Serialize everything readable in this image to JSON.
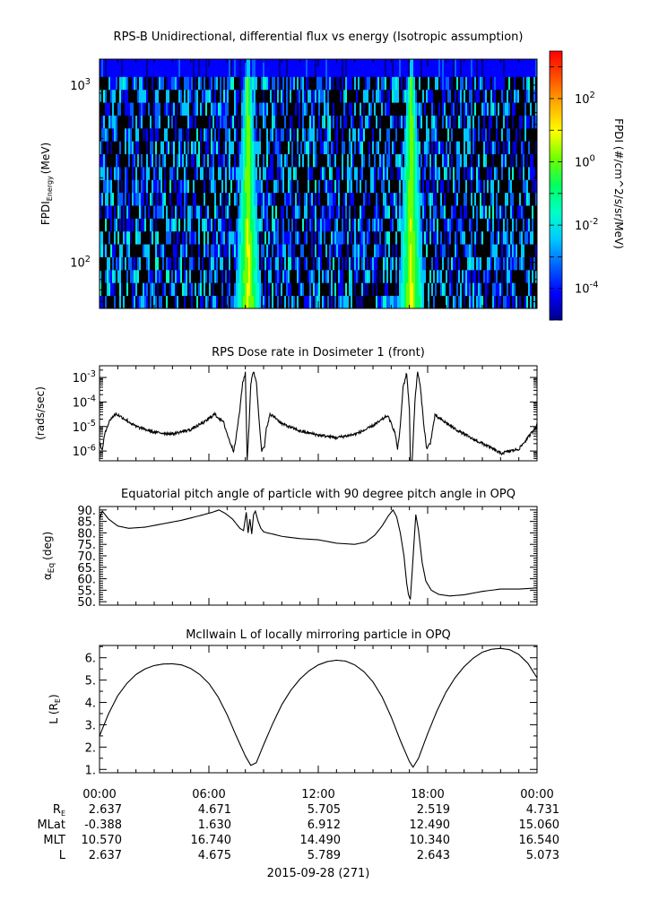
{
  "chart_data": [
    {
      "type": "heatmap",
      "title": "RPS-B  Unidirectional, differential flux vs energy (Isotropic assumption)",
      "ylabel_main": "FPDI",
      "ylabel_sub": "Energy",
      "ylabel_unit": "(MeV)",
      "y_scale": "log",
      "ylim": [
        55,
        1400
      ],
      "y_ticks": [
        {
          "value": 100,
          "base": "10",
          "exp": "2"
        },
        {
          "value": 1000,
          "base": "10",
          "exp": "3"
        }
      ],
      "x_range_hours": [
        0,
        24
      ],
      "peak_times_hours": [
        8.15,
        17.1
      ],
      "colorbar": {
        "label": "FPDI (#/cm^2/s/sr/MeV)",
        "scale": "log",
        "range_exp": [
          -5,
          3.5
        ],
        "ticks": [
          {
            "exp": "-4"
          },
          {
            "exp": "-2"
          },
          {
            "exp": "0"
          },
          {
            "exp": "2"
          }
        ],
        "colors": [
          "#00008c",
          "#0000ff",
          "#0060ff",
          "#00c8ff",
          "#00ffc8",
          "#00ff60",
          "#70ff00",
          "#ffff00",
          "#ffb000",
          "#ff5000",
          "#ff0000"
        ]
      }
    },
    {
      "type": "line",
      "title": "RPS  Dose rate in Dosimeter 1 (front)",
      "ylabel": "(rads/sec)",
      "y_scale": "log",
      "ylim": [
        4e-07,
        0.003
      ],
      "y_ticks": [
        {
          "value": 1e-06,
          "base": "10",
          "exp": "-6"
        },
        {
          "value": 1e-05,
          "base": "10",
          "exp": "-5"
        },
        {
          "value": 0.0001,
          "base": "10",
          "exp": "-4"
        },
        {
          "value": 0.001,
          "base": "10",
          "exp": "-3"
        }
      ],
      "series": [
        {
          "x": [
            0,
            0.15,
            0.3,
            0.6,
            0.9,
            1.3,
            2.0,
            3.0,
            4.0,
            5.0,
            5.8,
            6.3,
            6.8,
            7.1,
            7.35,
            7.5,
            7.7,
            7.85,
            8.0,
            8.1,
            8.2,
            8.3,
            8.45,
            8.6,
            8.75,
            8.9,
            9.05,
            9.15,
            9.35,
            9.6,
            10.0,
            11.0,
            12.0,
            13.0,
            14.0,
            14.7,
            15.3,
            15.8,
            16.2,
            16.35,
            16.5,
            16.65,
            16.85,
            17.0,
            17.05,
            17.15,
            17.3,
            17.45,
            17.6,
            17.8,
            17.95,
            18.15,
            18.4,
            18.8,
            19.5,
            20.5,
            21.3,
            22.0,
            22.5,
            23.0,
            23.5,
            24.0
          ],
          "y": [
            2.5e-06,
            1e-06,
            6e-06,
            2e-05,
            3.3e-05,
            2.2e-05,
            1e-05,
            5.8e-06,
            5e-06,
            7.5e-06,
            1.6e-05,
            3.2e-05,
            1.5e-05,
            3e-06,
            1e-06,
            4e-06,
            5e-05,
            0.0006,
            0.0015,
            4e-07,
            1e-05,
            0.0006,
            0.0018,
            0.0007,
            2e-05,
            1e-06,
            1.5e-06,
            8e-06,
            3e-05,
            2.5e-05,
            1.3e-05,
            6.5e-06,
            4.5e-06,
            3.5e-06,
            4.8e-06,
            8e-06,
            1.5e-05,
            2.8e-05,
            6e-06,
            1.2e-06,
            1e-05,
            0.0004,
            0.0015,
            5e-05,
            4e-07,
            4e-07,
            0.0001,
            0.0018,
            0.0004,
            1e-05,
            1.2e-06,
            2.2e-06,
            2.8e-05,
            1.8e-05,
            8e-06,
            3e-06,
            1.6e-06,
            8e-07,
            1e-06,
            1.2e-06,
            3.5e-06,
            1.1e-05
          ]
        }
      ]
    },
    {
      "type": "line",
      "title": "Equatorial pitch angle of particle with 90 degree pitch angle in OPQ",
      "ylabel_main": "α",
      "ylabel_sub": "Eq",
      "ylabel_unit": "(deg)",
      "ylim": [
        48.5,
        91.5
      ],
      "y_ticks": [
        50,
        55,
        60,
        65,
        70,
        75,
        80,
        85,
        90
      ],
      "series": [
        {
          "x": [
            0,
            0.15,
            0.5,
            1.0,
            1.6,
            2.5,
            3.5,
            4.5,
            5.5,
            6.2,
            6.55,
            6.9,
            7.3,
            7.7,
            7.9,
            8.05,
            8.15,
            8.25,
            8.35,
            8.45,
            8.55,
            8.7,
            8.85,
            9.0,
            9.2,
            9.5,
            10.0,
            11.0,
            12.0,
            13.0,
            14.0,
            14.6,
            15.1,
            15.5,
            15.85,
            16.1,
            16.3,
            16.5,
            16.7,
            16.85,
            16.95,
            17.05,
            17.15,
            17.35,
            17.5,
            17.7,
            17.9,
            18.2,
            18.6,
            19.2,
            20.0,
            21.0,
            22.0,
            23.0,
            24.0
          ],
          "y": [
            86,
            89.5,
            86,
            83,
            82,
            82.5,
            84,
            85.5,
            87.5,
            89,
            90,
            88.5,
            86,
            82,
            81,
            89,
            80,
            86,
            79.5,
            88,
            89.5,
            85,
            82,
            80.5,
            80,
            79.5,
            78.5,
            77.5,
            77,
            75.5,
            75,
            76,
            79,
            83,
            87.5,
            90,
            87,
            80,
            70,
            58,
            53,
            51,
            63,
            88,
            81,
            67,
            59,
            55,
            53.2,
            52.5,
            53,
            54.5,
            55.5,
            55.5,
            56
          ]
        }
      ]
    },
    {
      "type": "line",
      "title": "McIlwain L of locally mirroring particle in OPQ",
      "ylabel_main": "L (R",
      "ylabel_sub": "E",
      "ylabel_unit": ")",
      "ylim": [
        0.85,
        6.55
      ],
      "y_ticks": [
        "1.",
        "2.",
        "3.",
        "4.",
        "5.",
        "6."
      ],
      "y_tick_values": [
        1,
        2,
        3,
        4,
        5,
        6
      ],
      "series": [
        {
          "x": [
            0,
            0.5,
            1.0,
            1.5,
            2.0,
            2.5,
            3.0,
            3.5,
            4.0,
            4.5,
            5.0,
            5.5,
            6.0,
            6.5,
            7.0,
            7.5,
            8.0,
            8.3,
            8.6,
            9.0,
            9.5,
            10.0,
            10.5,
            11.0,
            11.5,
            12.0,
            12.5,
            13.0,
            13.5,
            14.0,
            14.5,
            15.0,
            15.5,
            16.0,
            16.5,
            17.0,
            17.2,
            17.5,
            18.0,
            18.5,
            19.0,
            19.5,
            20.0,
            20.5,
            21.0,
            21.5,
            22.0,
            22.5,
            23.0,
            23.5,
            24.0
          ],
          "y": [
            2.5,
            3.5,
            4.3,
            4.85,
            5.25,
            5.5,
            5.65,
            5.72,
            5.73,
            5.68,
            5.52,
            5.25,
            4.85,
            4.25,
            3.45,
            2.5,
            1.6,
            1.18,
            1.3,
            2.1,
            3.05,
            3.9,
            4.55,
            5.05,
            5.42,
            5.68,
            5.83,
            5.89,
            5.85,
            5.68,
            5.38,
            4.92,
            4.25,
            3.35,
            2.3,
            1.35,
            1.1,
            1.5,
            2.6,
            3.6,
            4.45,
            5.1,
            5.6,
            5.98,
            6.25,
            6.38,
            6.42,
            6.36,
            6.15,
            5.75,
            5.1
          ]
        }
      ]
    }
  ],
  "time_axis": {
    "ticks": [
      "00:00",
      "06:00",
      "12:00",
      "18:00",
      "00:00"
    ],
    "ephemeris": [
      {
        "label": "R",
        "sub": "E",
        "values": [
          "2.637",
          "4.671",
          "5.705",
          "2.519",
          "4.731"
        ]
      },
      {
        "label": "MLat",
        "sub": "",
        "values": [
          "-0.388",
          "1.630",
          "6.912",
          "12.490",
          "15.060"
        ]
      },
      {
        "label": "MLT",
        "sub": "",
        "values": [
          "10.570",
          "16.740",
          "14.490",
          "10.340",
          "16.540"
        ]
      },
      {
        "label": "L",
        "sub": "",
        "values": [
          "2.637",
          "4.675",
          "5.789",
          "2.643",
          "5.073"
        ]
      }
    ],
    "date_label": "2015-09-28 (271)"
  }
}
